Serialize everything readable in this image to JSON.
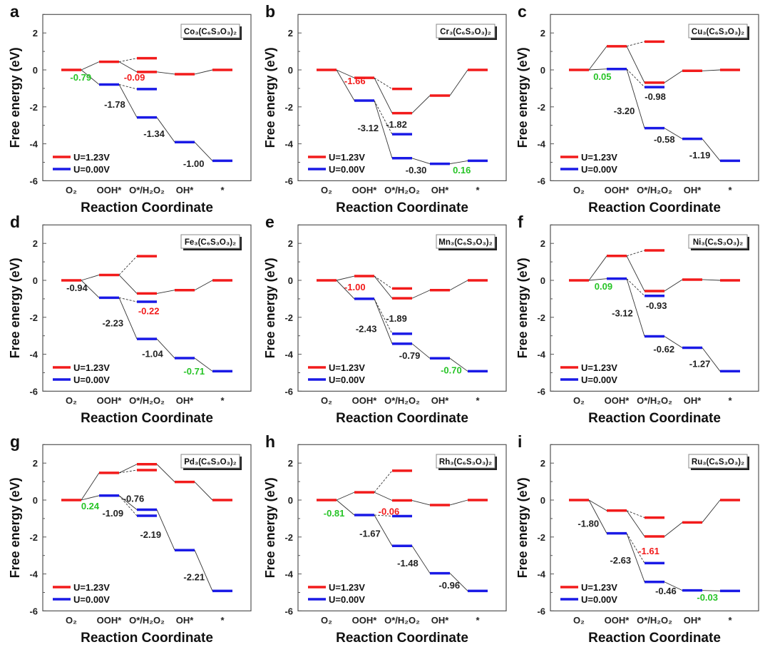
{
  "chart_data": {
    "type": "line",
    "categories": [
      "O₂",
      "OOH*",
      "O*/H₂O₂",
      "OH*",
      "*"
    ],
    "xlabel": "Reaction Coordinate",
    "ylabel": "Free energy (eV)",
    "ylim": [
      -6,
      3
    ],
    "yticks": [
      -6,
      -4,
      -2,
      0,
      2
    ],
    "legend": {
      "position": "bottom-left",
      "entries": [
        "U=1.23V",
        "U=0.00V"
      ]
    },
    "colors": {
      "U=1.23V": "#f21b1b",
      "U=0.00V": "#1a1ae6",
      "green": "#27c427",
      "black": "#222222"
    },
    "panels": [
      {
        "letter": "a",
        "title": "Co₃(C₆S₃O₃)₂",
        "series": [
          {
            "name": "U=1.23V",
            "values": [
              0,
              0.44,
              -0.11,
              -0.23,
              0
            ],
            "alt": 0.63
          },
          {
            "name": "U=0.00V",
            "values": [
              0,
              -0.79,
              -2.57,
              -3.91,
              -4.92
            ],
            "alt": -1.04
          }
        ],
        "labels": [
          {
            "text": "-0.79",
            "color": "green",
            "x": 0.25,
            "y": -0.39
          },
          {
            "text": "-0.09",
            "color": "red",
            "x": 1.67,
            "y": -0.39
          },
          {
            "text": "-1.78",
            "color": "black",
            "x": 1.15,
            "y": -1.85
          },
          {
            "text": "-1.34",
            "color": "black",
            "x": 2.19,
            "y": -3.44
          },
          {
            "text": "-1.00",
            "color": "black",
            "x": 3.24,
            "y": -5.06
          }
        ]
      },
      {
        "letter": "b",
        "title": "Cr₃(C₆S₃O₃)₂",
        "series": [
          {
            "name": "U=1.23V",
            "values": [
              0,
              -0.43,
              -2.34,
              -1.39,
              0
            ],
            "alt": -1.03
          },
          {
            "name": "U=0.00V",
            "values": [
              0,
              -1.66,
              -4.78,
              -5.08,
              -4.92
            ],
            "alt": -3.48
          }
        ],
        "labels": [
          {
            "text": "-1.66",
            "color": "red",
            "x": 0.75,
            "y": -0.58
          },
          {
            "text": "-3.12",
            "color": "black",
            "x": 1.1,
            "y": -3.13
          },
          {
            "text": "-1.82",
            "color": "black",
            "x": 1.85,
            "y": -2.94
          },
          {
            "text": "-0.30",
            "color": "black",
            "x": 2.37,
            "y": -5.4
          },
          {
            "text": "0.16",
            "color": "green",
            "x": 3.58,
            "y": -5.4
          }
        ]
      },
      {
        "letter": "c",
        "title": "Cu₃(C₆S₃O₃)₂",
        "series": [
          {
            "name": "U=1.23V",
            "values": [
              0,
              1.28,
              -0.69,
              -0.05,
              0
            ],
            "alt": 1.53
          },
          {
            "name": "U=0.00V",
            "values": [
              0,
              0.05,
              -3.15,
              -3.73,
              -4.92
            ],
            "alt": -0.93
          }
        ],
        "labels": [
          {
            "text": "0.05",
            "color": "green",
            "x": 0.62,
            "y": -0.35
          },
          {
            "text": "-0.98",
            "color": "black",
            "x": 2.02,
            "y": -1.43
          },
          {
            "text": "-3.20",
            "color": "black",
            "x": 1.2,
            "y": -2.2
          },
          {
            "text": "-0.58",
            "color": "black",
            "x": 2.26,
            "y": -3.75
          },
          {
            "text": "-1.19",
            "color": "black",
            "x": 3.2,
            "y": -4.6
          }
        ]
      },
      {
        "letter": "d",
        "title": "Fe₃(C₆S₃O₃)₂",
        "series": [
          {
            "name": "U=1.23V",
            "values": [
              0,
              0.29,
              -0.71,
              -0.53,
              0
            ],
            "alt": 1.31
          },
          {
            "name": "U=0.00V",
            "values": [
              0,
              -0.94,
              -3.17,
              -4.21,
              -4.92
            ],
            "alt": -1.16
          }
        ],
        "labels": [
          {
            "text": "-0.94",
            "color": "black",
            "x": 0.15,
            "y": -0.38
          },
          {
            "text": "-0.22",
            "color": "red",
            "x": 2.05,
            "y": -1.65
          },
          {
            "text": "-2.23",
            "color": "black",
            "x": 1.1,
            "y": -2.3
          },
          {
            "text": "-1.04",
            "color": "black",
            "x": 2.15,
            "y": -3.95
          },
          {
            "text": "-0.71",
            "color": "green",
            "x": 3.25,
            "y": -4.9
          }
        ]
      },
      {
        "letter": "e",
        "title": "Mn₃(C₆S₃O₃)₂",
        "series": [
          {
            "name": "U=1.23V",
            "values": [
              0,
              0.23,
              -0.97,
              -0.53,
              0
            ],
            "alt": -0.44
          },
          {
            "name": "U=0.00V",
            "values": [
              0,
              -1.0,
              -3.43,
              -4.22,
              -4.92
            ],
            "alt": -2.89
          }
        ],
        "labels": [
          {
            "text": "-1.00",
            "color": "red",
            "x": 0.75,
            "y": -0.35
          },
          {
            "text": "-1.89",
            "color": "black",
            "x": 1.85,
            "y": -2.05
          },
          {
            "text": "-2.43",
            "color": "black",
            "x": 1.05,
            "y": -2.6
          },
          {
            "text": "-0.79",
            "color": "black",
            "x": 2.2,
            "y": -4.05
          },
          {
            "text": "-0.70",
            "color": "green",
            "x": 3.3,
            "y": -4.85
          }
        ]
      },
      {
        "letter": "f",
        "title": "Ni₃(C₆S₃O₃)₂",
        "series": [
          {
            "name": "U=1.23V",
            "values": [
              0,
              1.32,
              -0.58,
              0.04,
              0
            ],
            "alt": 1.62
          },
          {
            "name": "U=0.00V",
            "values": [
              0,
              0.09,
              -3.03,
              -3.65,
              -4.92
            ],
            "alt": -0.84
          }
        ],
        "labels": [
          {
            "text": "0.09",
            "color": "green",
            "x": 0.65,
            "y": -0.3
          },
          {
            "text": "-0.93",
            "color": "black",
            "x": 2.05,
            "y": -1.35
          },
          {
            "text": "-3.12",
            "color": "black",
            "x": 1.15,
            "y": -1.75
          },
          {
            "text": "-0.62",
            "color": "black",
            "x": 2.25,
            "y": -3.7
          },
          {
            "text": "-1.27",
            "color": "black",
            "x": 3.2,
            "y": -4.5
          }
        ]
      },
      {
        "letter": "g",
        "title": "Pd₃(C₆S₃O₃)₂",
        "series": [
          {
            "name": "U=1.23V",
            "values": [
              0,
              1.47,
              1.94,
              0.98,
              0
            ],
            "alt": 1.62
          },
          {
            "name": "U=0.00V",
            "values": [
              0,
              0.24,
              -0.52,
              -2.71,
              -4.92
            ],
            "alt": -0.85
          }
        ],
        "labels": [
          {
            "text": "0.24",
            "color": "green",
            "x": 0.5,
            "y": -0.3
          },
          {
            "text": "-0.76",
            "color": "black",
            "x": 1.65,
            "y": 0.1
          },
          {
            "text": "-1.09",
            "color": "black",
            "x": 1.1,
            "y": -0.7
          },
          {
            "text": "-2.19",
            "color": "black",
            "x": 2.1,
            "y": -1.85
          },
          {
            "text": "-2.21",
            "color": "black",
            "x": 3.25,
            "y": -4.15
          }
        ]
      },
      {
        "letter": "h",
        "title": "Rh₃(C₆S₃O₃)₂",
        "series": [
          {
            "name": "U=1.23V",
            "values": [
              0,
              0.42,
              -0.02,
              -0.27,
              0
            ],
            "alt": 1.59
          },
          {
            "name": "U=0.00V",
            "values": [
              0,
              -0.81,
              -2.48,
              -3.96,
              -4.92
            ],
            "alt": -0.87
          }
        ],
        "labels": [
          {
            "text": "-0.81",
            "color": "green",
            "x": 0.2,
            "y": -0.7
          },
          {
            "text": "-0.06",
            "color": "red",
            "x": 1.65,
            "y": -0.6
          },
          {
            "text": "-1.67",
            "color": "black",
            "x": 1.15,
            "y": -1.8
          },
          {
            "text": "-1.48",
            "color": "black",
            "x": 2.15,
            "y": -3.4
          },
          {
            "text": "-0.96",
            "color": "black",
            "x": 3.25,
            "y": -4.6
          }
        ]
      },
      {
        "letter": "i",
        "title": "Ru₃(C₆S₃O₃)₂",
        "series": [
          {
            "name": "U=1.23V",
            "values": [
              0,
              -0.57,
              -1.97,
              -1.21,
              0
            ],
            "alt": -0.95
          },
          {
            "name": "U=0.00V",
            "values": [
              0,
              -1.8,
              -4.43,
              -4.89,
              -4.92
            ],
            "alt": -3.41
          }
        ],
        "labels": [
          {
            "text": "-1.80",
            "color": "black",
            "x": 0.25,
            "y": -1.25
          },
          {
            "text": "-1.61",
            "color": "red",
            "x": 1.85,
            "y": -2.75
          },
          {
            "text": "-2.63",
            "color": "black",
            "x": 1.1,
            "y": -3.25
          },
          {
            "text": "-0.46",
            "color": "black",
            "x": 2.3,
            "y": -4.9
          },
          {
            "text": "-0.03",
            "color": "green",
            "x": 3.4,
            "y": -5.25
          }
        ]
      }
    ]
  }
}
